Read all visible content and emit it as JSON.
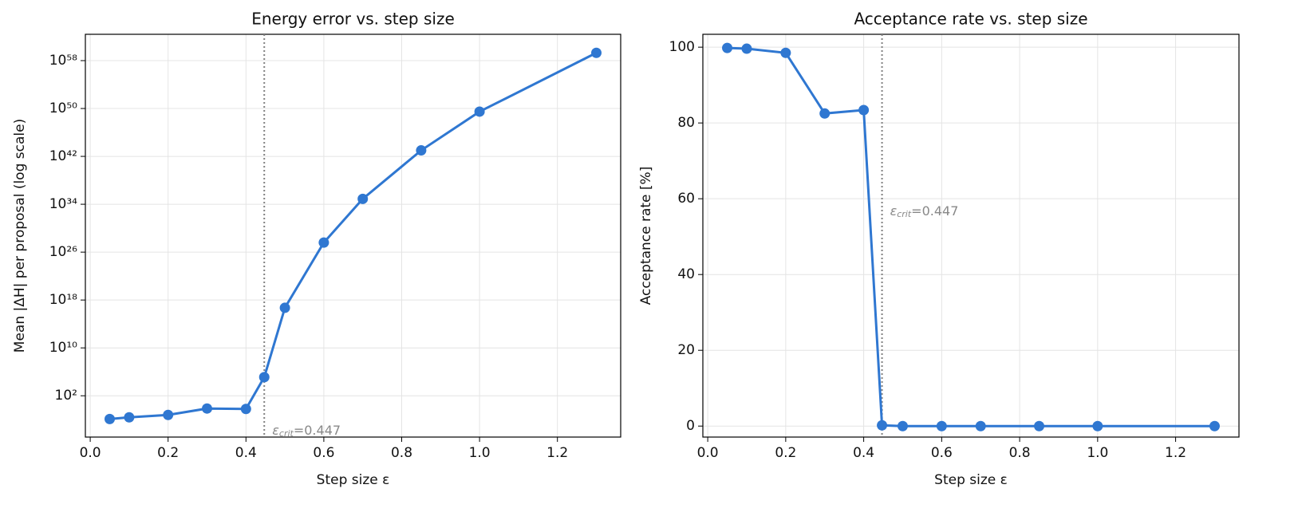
{
  "chart_data": [
    {
      "type": "line",
      "title": "Energy error vs. step size",
      "xlabel": "Step size ε",
      "ylabel": "Mean |ΔH| per proposal (log scale)",
      "ylog": true,
      "grid": true,
      "x": [
        0.05,
        0.1,
        0.2,
        0.3,
        0.4,
        0.447,
        0.5,
        0.6,
        0.7,
        0.85,
        1.0,
        1.3
      ],
      "series": [
        {
          "name": "Mean |ΔH|",
          "color": "#2f77d1",
          "values": [
            0.013,
            0.025,
            0.063,
            0.74,
            0.63,
            130000,
            5e+16,
            4e+27,
            8e+34,
            1e+43,
            3e+49,
            2e+59
          ]
        }
      ],
      "xlim": [
        -0.0125,
        1.3625
      ],
      "xticks": [
        {
          "value": 0,
          "label": "0.0"
        },
        0.2,
        0.4,
        0.6,
        0.8,
        {
          "value": 1,
          "label": "1.0"
        },
        1.2
      ],
      "ylim": [
        1.26e-05,
        2.5e+62
      ],
      "yticks": [
        {
          "value": 100,
          "label": "10²"
        },
        {
          "value": 10000000000.0,
          "label": "10¹⁰"
        },
        {
          "value": 1e+18,
          "label": "10¹⁸"
        },
        {
          "value": 1e+26,
          "label": "10²⁶"
        },
        {
          "value": 1e+34,
          "label": "10³⁴"
        },
        {
          "value": 1e+42,
          "label": "10⁴²"
        },
        {
          "value": 1e+50,
          "label": "10⁵⁰"
        },
        {
          "value": 1e+58,
          "label": "10⁵⁸"
        }
      ],
      "vline": {
        "x": 0.447,
        "symbol": "ε",
        "subscript": "crit",
        "text": "=0.447"
      }
    },
    {
      "type": "line",
      "title": "Acceptance rate vs. step size",
      "xlabel": "Step size ε",
      "ylabel": "Acceptance rate [%]",
      "ylog": false,
      "grid": true,
      "x": [
        0.05,
        0.1,
        0.2,
        0.3,
        0.4,
        0.447,
        0.5,
        0.6,
        0.7,
        0.85,
        1.0,
        1.3
      ],
      "series": [
        {
          "name": "Acceptance rate",
          "color": "#2f77d1",
          "values": [
            99.8,
            99.6,
            98.5,
            82.5,
            83.4,
            0.2,
            0,
            0,
            0,
            0,
            0,
            0
          ]
        }
      ],
      "xlim": [
        -0.0125,
        1.3625
      ],
      "xticks": [
        {
          "value": 0,
          "label": "0.0"
        },
        0.2,
        0.4,
        0.6,
        0.8,
        {
          "value": 1,
          "label": "1.0"
        },
        1.2
      ],
      "ylim": [
        -2.9,
        103.4
      ],
      "yticks": [
        0,
        20,
        40,
        60,
        80,
        100
      ],
      "vline": {
        "x": 0.447,
        "symbol": "ε",
        "subscript": "crit",
        "text": "=0.447"
      }
    }
  ]
}
